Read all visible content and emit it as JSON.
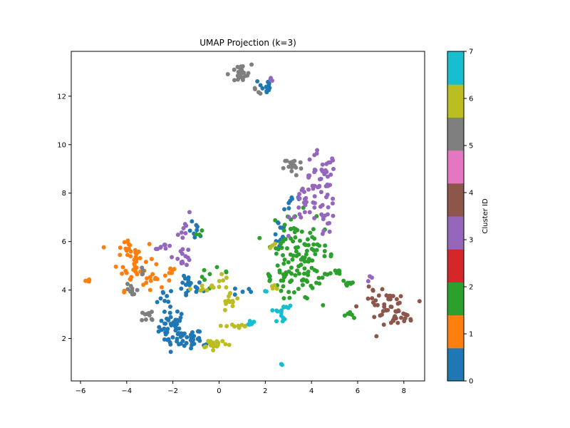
{
  "chart_data": {
    "type": "scatter",
    "title": "UMAP Projection (k=3)",
    "xlabel": "",
    "ylabel": "",
    "xlim": [
      -6.4,
      8.9
    ],
    "ylim": [
      0.25,
      13.85
    ],
    "x_ticks": [
      -6,
      -4,
      -2,
      0,
      2,
      4,
      6,
      8
    ],
    "y_ticks": [
      2,
      4,
      6,
      8,
      10,
      12
    ],
    "grid": false,
    "colorbar": {
      "label": "Cluster ID",
      "range": [
        0,
        7
      ],
      "ticks": [
        0,
        1,
        2,
        3,
        4,
        5,
        6,
        7
      ],
      "colors": [
        "#1f77b4",
        "#ff7f0e",
        "#2ca02c",
        "#d62728",
        "#9467bd",
        "#8c564b",
        "#e377c2",
        "#7f7f7f",
        "#bcbd22",
        "#17becf"
      ]
    },
    "clusters": [
      {
        "cluster": 0,
        "color": "#1f77b4",
        "regions": [
          {
            "cx": -2.0,
            "cy": 2.5,
            "sx": 0.3,
            "sy": 0.4,
            "n": 40
          },
          {
            "cx": -1.5,
            "cy": 2.0,
            "sx": 0.4,
            "sy": 0.2,
            "n": 25
          },
          {
            "cx": -0.9,
            "cy": 1.85,
            "sx": 0.3,
            "sy": 0.1,
            "n": 10
          },
          {
            "cx": -1.3,
            "cy": 4.1,
            "sx": 0.3,
            "sy": 0.25,
            "n": 20
          },
          {
            "cx": -1.0,
            "cy": 6.4,
            "sx": 0.15,
            "sy": 0.2,
            "n": 8
          },
          {
            "cx": -2.3,
            "cy": 3.8,
            "sx": 0.2,
            "sy": 0.2,
            "n": 8
          },
          {
            "cx": 1.0,
            "cy": 3.95,
            "sx": 0.2,
            "sy": 0.1,
            "n": 5
          },
          {
            "cx": 2.0,
            "cy": 12.4,
            "sx": 0.15,
            "sy": 0.2,
            "n": 15
          },
          {
            "cx": 2.6,
            "cy": 6.4,
            "sx": 0.15,
            "sy": 0.35,
            "n": 12
          },
          {
            "cx": 3.1,
            "cy": 7.7,
            "sx": 0.3,
            "sy": 0.3,
            "n": 8
          }
        ]
      },
      {
        "cluster": 1,
        "color": "#ff7f0e",
        "regions": [
          {
            "cx": -3.6,
            "cy": 5.3,
            "sx": 0.4,
            "sy": 0.4,
            "n": 25
          },
          {
            "cx": -4.0,
            "cy": 5.9,
            "sx": 0.2,
            "sy": 0.15,
            "n": 8
          },
          {
            "cx": -3.8,
            "cy": 4.6,
            "sx": 0.3,
            "sy": 0.3,
            "n": 15
          },
          {
            "cx": -2.7,
            "cy": 4.5,
            "sx": 0.3,
            "sy": 0.25,
            "n": 12
          },
          {
            "cx": -2.1,
            "cy": 4.8,
            "sx": 0.15,
            "sy": 0.1,
            "n": 6
          },
          {
            "cx": -5.7,
            "cy": 4.4,
            "sx": 0.04,
            "sy": 0.03,
            "n": 6
          }
        ]
      },
      {
        "cluster": 2,
        "color": "#2ca02c",
        "regions": [
          {
            "cx": 3.2,
            "cy": 6.0,
            "sx": 0.5,
            "sy": 0.6,
            "n": 50
          },
          {
            "cx": 4.2,
            "cy": 5.4,
            "sx": 0.4,
            "sy": 0.5,
            "n": 30
          },
          {
            "cx": 3.6,
            "cy": 4.4,
            "sx": 0.4,
            "sy": 0.4,
            "n": 30
          },
          {
            "cx": 5.0,
            "cy": 4.7,
            "sx": 0.2,
            "sy": 0.1,
            "n": 8
          },
          {
            "cx": 5.6,
            "cy": 4.3,
            "sx": 0.15,
            "sy": 0.1,
            "n": 10
          },
          {
            "cx": 2.8,
            "cy": 4.6,
            "sx": 0.3,
            "sy": 0.4,
            "n": 20
          },
          {
            "cx": 5.8,
            "cy": 3.0,
            "sx": 0.3,
            "sy": 0.1,
            "n": 6
          },
          {
            "cx": -0.6,
            "cy": 4.4,
            "sx": 0.2,
            "sy": 0.2,
            "n": 5
          },
          {
            "cx": -0.9,
            "cy": 6.3,
            "sx": 0.1,
            "sy": 0.1,
            "n": 3
          },
          {
            "cx": 0.1,
            "cy": 4.8,
            "sx": 0.2,
            "sy": 0.1,
            "n": 3
          },
          {
            "cx": 2.2,
            "cy": 4.5,
            "sx": 0.15,
            "sy": 0.15,
            "n": 4
          }
        ]
      },
      {
        "cluster": 3,
        "color": "#9467bd",
        "regions": [
          {
            "cx": 4.4,
            "cy": 8.5,
            "sx": 0.35,
            "sy": 0.6,
            "n": 40
          },
          {
            "cx": 3.8,
            "cy": 7.5,
            "sx": 0.35,
            "sy": 0.5,
            "n": 25
          },
          {
            "cx": 4.7,
            "cy": 7.0,
            "sx": 0.2,
            "sy": 0.4,
            "n": 15
          },
          {
            "cx": -1.6,
            "cy": 5.4,
            "sx": 0.2,
            "sy": 0.2,
            "n": 15
          },
          {
            "cx": -1.4,
            "cy": 6.5,
            "sx": 0.2,
            "sy": 0.3,
            "n": 8
          },
          {
            "cx": -2.4,
            "cy": 5.8,
            "sx": 0.2,
            "sy": 0.05,
            "n": 8
          },
          {
            "cx": 2.3,
            "cy": 12.6,
            "sx": 0.1,
            "sy": 0.1,
            "n": 3
          },
          {
            "cx": 6.6,
            "cy": 4.5,
            "sx": 0.1,
            "sy": 0.1,
            "n": 3
          }
        ]
      },
      {
        "cluster": 4,
        "color": "#8c564b",
        "regions": [
          {
            "cx": 7.1,
            "cy": 3.3,
            "sx": 0.5,
            "sy": 0.3,
            "n": 35
          },
          {
            "cx": 7.8,
            "cy": 2.9,
            "sx": 0.3,
            "sy": 0.15,
            "n": 15
          },
          {
            "cx": 6.8,
            "cy": 4.0,
            "sx": 0.2,
            "sy": 0.1,
            "n": 4
          },
          {
            "cx": 7.4,
            "cy": 3.7,
            "sx": 0.2,
            "sy": 0.1,
            "n": 5
          }
        ]
      },
      {
        "cluster": 5,
        "color": "#7f7f7f",
        "regions": [
          {
            "cx": 0.9,
            "cy": 12.9,
            "sx": 0.25,
            "sy": 0.2,
            "n": 25
          },
          {
            "cx": 1.6,
            "cy": 12.2,
            "sx": 0.1,
            "sy": 0.1,
            "n": 4
          },
          {
            "cx": 3.2,
            "cy": 9.1,
            "sx": 0.2,
            "sy": 0.2,
            "n": 20
          },
          {
            "cx": -3.8,
            "cy": 4.0,
            "sx": 0.15,
            "sy": 0.3,
            "n": 10
          },
          {
            "cx": -3.0,
            "cy": 2.9,
            "sx": 0.2,
            "sy": 0.15,
            "n": 10
          },
          {
            "cx": -3.3,
            "cy": 4.8,
            "sx": 0.1,
            "sy": 0.1,
            "n": 4
          }
        ]
      },
      {
        "cluster": 6,
        "color": "#bcbd22",
        "regions": [
          {
            "cx": -0.2,
            "cy": 1.8,
            "sx": 0.3,
            "sy": 0.1,
            "n": 20
          },
          {
            "cx": 0.5,
            "cy": 3.5,
            "sx": 0.2,
            "sy": 0.2,
            "n": 15
          },
          {
            "cx": 0.8,
            "cy": 2.5,
            "sx": 0.25,
            "sy": 0.1,
            "n": 10
          },
          {
            "cx": 0.0,
            "cy": 4.3,
            "sx": 0.2,
            "sy": 0.2,
            "n": 6
          },
          {
            "cx": -0.6,
            "cy": 4.1,
            "sx": 0.3,
            "sy": 0.1,
            "n": 8
          },
          {
            "cx": 2.4,
            "cy": 4.2,
            "sx": 0.1,
            "sy": 0.1,
            "n": 4
          },
          {
            "cx": 2.3,
            "cy": 5.9,
            "sx": 0.05,
            "sy": 0.1,
            "n": 3
          }
        ]
      },
      {
        "cluster": 7,
        "color": "#17becf",
        "regions": [
          {
            "cx": 1.4,
            "cy": 2.65,
            "sx": 0.05,
            "sy": 0.05,
            "n": 8
          },
          {
            "cx": 2.7,
            "cy": 3.0,
            "sx": 0.15,
            "sy": 0.15,
            "n": 10
          },
          {
            "cx": 2.9,
            "cy": 3.4,
            "sx": 0.1,
            "sy": 0.1,
            "n": 5
          },
          {
            "cx": 2.7,
            "cy": 0.92,
            "sx": 0.02,
            "sy": 0.02,
            "n": 3
          },
          {
            "cx": 2.0,
            "cy": 3.9,
            "sx": 0.05,
            "sy": 0.05,
            "n": 2
          }
        ]
      }
    ]
  }
}
